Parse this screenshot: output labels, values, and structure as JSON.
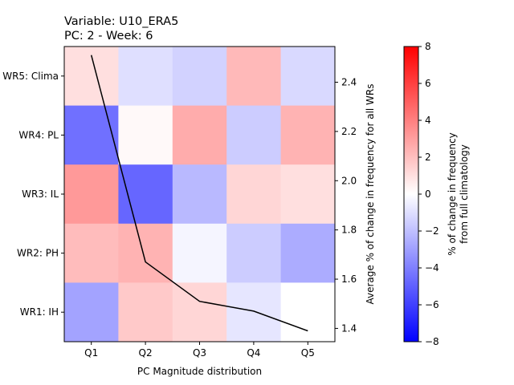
{
  "chart_data": {
    "type": "heatmap",
    "title_lines": [
      "Variable: U10_ERA5",
      "PC: 2 - Week: 6"
    ],
    "xlabel": "PC Magnitude distribution",
    "ylabel_right": "Average % of change in frequency for all WRs",
    "colorbar_label_lines": [
      "% of change in frequency",
      "from full climatology"
    ],
    "x_categories": [
      "Q1",
      "Q2",
      "Q3",
      "Q4",
      "Q5"
    ],
    "y_categories": [
      "WR5: Clima",
      "WR4: PL",
      "WR3: IL",
      "WR2: PH",
      "WR1: IH"
    ],
    "values": [
      [
        1.0,
        -1.0,
        -1.4,
        2.2,
        -1.2
      ],
      [
        -4.5,
        0.2,
        2.6,
        -1.6,
        2.4
      ],
      [
        3.2,
        -4.8,
        -2.2,
        1.3,
        1.0
      ],
      [
        2.1,
        2.4,
        -0.3,
        -1.6,
        -2.6
      ],
      [
        -2.9,
        1.7,
        1.3,
        -0.8,
        0.0
      ]
    ],
    "color_scale": {
      "min": -8,
      "max": 8,
      "low_color": "#0000ff",
      "mid_color": "#ffffff",
      "high_color": "#ff0000"
    },
    "colorbar_ticks": [
      -8,
      -6,
      -4,
      -2,
      0,
      2,
      4,
      6,
      8
    ],
    "line_series": {
      "x": [
        "Q1",
        "Q2",
        "Q3",
        "Q4",
        "Q5"
      ],
      "y": [
        2.51,
        1.67,
        1.51,
        1.47,
        1.39
      ]
    },
    "right_axis": {
      "range": [
        1.346,
        2.545
      ],
      "ticks": [
        1.4,
        1.6,
        1.8,
        2.0,
        2.2,
        2.4
      ]
    }
  }
}
